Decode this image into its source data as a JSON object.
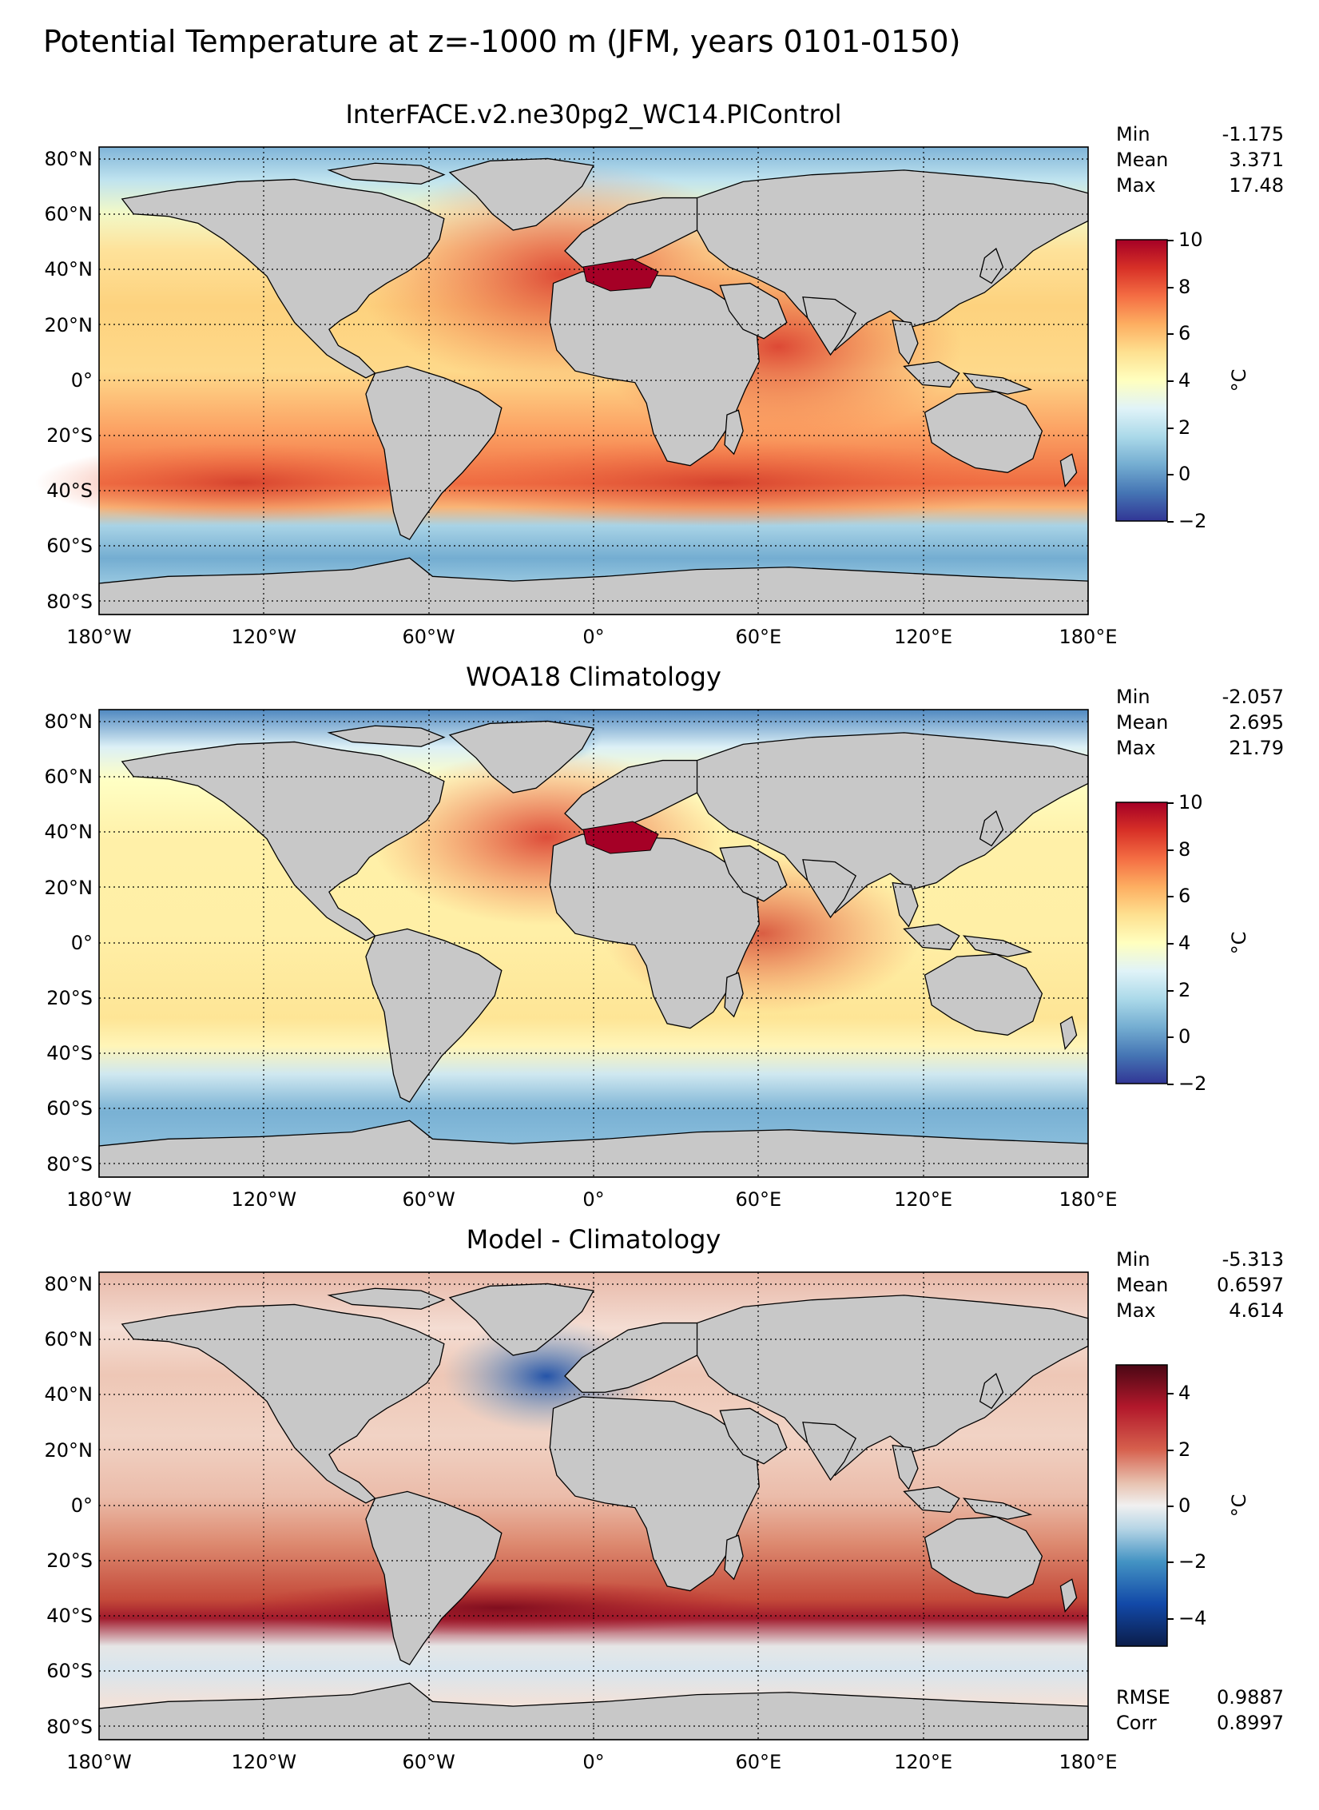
{
  "figure": {
    "suptitle": "Potential Temperature at z=-1000 m (JFM, years 0101-0150)"
  },
  "axes": {
    "lon_ticks": [
      "180°W",
      "120°W",
      "60°W",
      "0°",
      "60°E",
      "120°E",
      "180°E"
    ],
    "lat_ticks": [
      "80°N",
      "60°N",
      "40°N",
      "20°N",
      "0°",
      "20°S",
      "40°S",
      "60°S",
      "80°S"
    ]
  },
  "panels": [
    {
      "title": "InterFACE.v2.ne30pg2_WC14.PIControl",
      "stats": [
        {
          "label": "Min",
          "value": "-1.175"
        },
        {
          "label": "Mean",
          "value": "3.371"
        },
        {
          "label": "Max",
          "value": "17.48"
        }
      ],
      "colorbar": {
        "ticks": [
          "10",
          "8",
          "6",
          "4",
          "2",
          "0",
          "−2"
        ],
        "range": [
          -2,
          10
        ],
        "unit": "°C",
        "colormap": "RdYlBu_r"
      }
    },
    {
      "title": "WOA18 Climatology",
      "stats": [
        {
          "label": "Min",
          "value": "-2.057"
        },
        {
          "label": "Mean",
          "value": "2.695"
        },
        {
          "label": "Max",
          "value": "21.79"
        }
      ],
      "colorbar": {
        "ticks": [
          "10",
          "8",
          "6",
          "4",
          "2",
          "0",
          "−2"
        ],
        "range": [
          -2,
          10
        ],
        "unit": "°C",
        "colormap": "RdYlBu_r"
      }
    },
    {
      "title": "Model - Climatology",
      "stats": [
        {
          "label": "Min",
          "value": "-5.313"
        },
        {
          "label": "Mean",
          "value": "0.6597"
        },
        {
          "label": "Max",
          "value": "4.614"
        }
      ],
      "colorbar": {
        "ticks": [
          "4",
          "2",
          "0",
          "−2",
          "−4"
        ],
        "range": [
          -5,
          5
        ],
        "unit": "°C",
        "colormap": "RdBu_r"
      },
      "metrics": [
        {
          "label": "RMSE",
          "value": "0.9887"
        },
        {
          "label": "Corr",
          "value": "0.8997"
        }
      ]
    }
  ],
  "colors": {
    "land": "#c8c8c8",
    "ice_shelf": "#ffffff",
    "coastline": "#000000"
  }
}
